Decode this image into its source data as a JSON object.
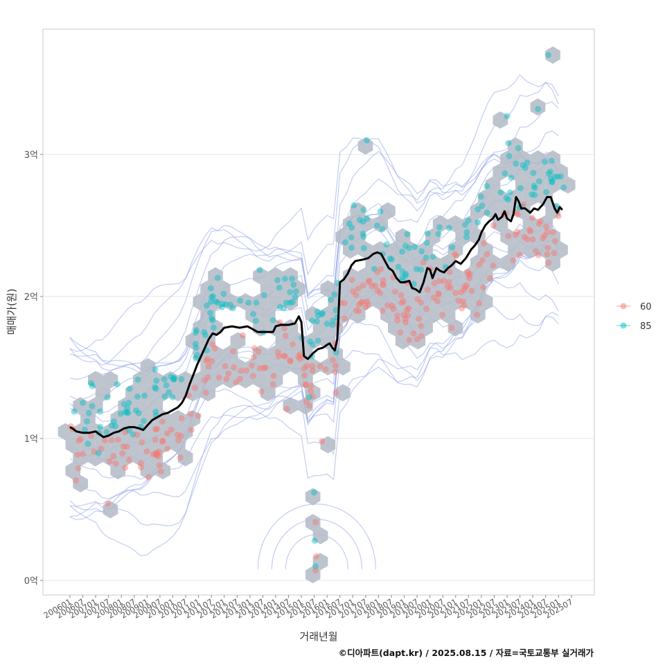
{
  "chart_data": {
    "type": "scatter",
    "xlabel": "거래년월",
    "ylabel": "매매가(원)",
    "caption": "©디아파트(dapt.kr) / 2025.08.15 / 자료=국토교통부 실거래가",
    "y_ticks": [
      {
        "value": 0,
        "label": "0억"
      },
      {
        "value": 1,
        "label": "1억"
      },
      {
        "value": 2,
        "label": "2억"
      },
      {
        "value": 3,
        "label": "3억"
      }
    ],
    "ylim": [
      -0.1,
      3.9
    ],
    "x_ticks": [
      "200601",
      "200607",
      "200701",
      "200707",
      "200801",
      "200807",
      "200901",
      "200907",
      "201001",
      "201007",
      "201101",
      "201107",
      "201201",
      "201207",
      "201301",
      "201307",
      "201401",
      "201407",
      "201501",
      "201507",
      "201601",
      "201607",
      "201701",
      "201707",
      "201801",
      "201807",
      "201901",
      "201907",
      "202001",
      "202007",
      "202101",
      "202107",
      "202201",
      "202207",
      "202301",
      "202307",
      "202401",
      "202407",
      "202501",
      "202507"
    ],
    "grid": true,
    "legend_position": "right",
    "legend": [
      {
        "label": "60",
        "color": "#F8766D"
      },
      {
        "label": "85",
        "color": "#00BFC4"
      }
    ],
    "line_color": "#000000",
    "hex_color": "#b3bac5",
    "contour_color": "#8fa3ea",
    "trend_line": [
      [
        2006.0,
        1.08
      ],
      [
        2006.1,
        1.07
      ],
      [
        2006.25,
        1.05
      ],
      [
        2006.5,
        1.04
      ],
      [
        2006.75,
        1.04
      ],
      [
        2007.0,
        1.05
      ],
      [
        2007.15,
        1.03
      ],
      [
        2007.3,
        1.01
      ],
      [
        2007.5,
        1.02
      ],
      [
        2007.7,
        1.04
      ],
      [
        2007.9,
        1.05
      ],
      [
        2008.1,
        1.07
      ],
      [
        2008.3,
        1.08
      ],
      [
        2008.5,
        1.08
      ],
      [
        2008.7,
        1.07
      ],
      [
        2008.85,
        1.06
      ],
      [
        2009.0,
        1.09
      ],
      [
        2009.2,
        1.13
      ],
      [
        2009.4,
        1.15
      ],
      [
        2009.6,
        1.17
      ],
      [
        2009.8,
        1.18
      ],
      [
        2010.0,
        1.2
      ],
      [
        2010.2,
        1.22
      ],
      [
        2010.35,
        1.25
      ],
      [
        2010.5,
        1.3
      ],
      [
        2010.65,
        1.38
      ],
      [
        2010.8,
        1.45
      ],
      [
        2010.95,
        1.52
      ],
      [
        2011.1,
        1.58
      ],
      [
        2011.25,
        1.64
      ],
      [
        2011.4,
        1.7
      ],
      [
        2011.55,
        1.74
      ],
      [
        2011.7,
        1.73
      ],
      [
        2011.85,
        1.75
      ],
      [
        2012.0,
        1.78
      ],
      [
        2012.3,
        1.79
      ],
      [
        2012.6,
        1.78
      ],
      [
        2012.9,
        1.79
      ],
      [
        2013.1,
        1.77
      ],
      [
        2013.3,
        1.75
      ],
      [
        2013.6,
        1.75
      ],
      [
        2013.9,
        1.75
      ],
      [
        2014.0,
        1.79
      ],
      [
        2014.2,
        1.8
      ],
      [
        2014.5,
        1.8
      ],
      [
        2014.75,
        1.81
      ],
      [
        2014.9,
        1.86
      ],
      [
        2015.0,
        1.82
      ],
      [
        2015.1,
        1.58
      ],
      [
        2015.25,
        1.56
      ],
      [
        2015.45,
        1.6
      ],
      [
        2015.65,
        1.63
      ],
      [
        2015.85,
        1.64
      ],
      [
        2016.0,
        1.66
      ],
      [
        2016.1,
        1.67
      ],
      [
        2016.2,
        1.64
      ],
      [
        2016.3,
        1.62
      ],
      [
        2016.4,
        1.7
      ],
      [
        2016.5,
        2.1
      ],
      [
        2016.65,
        2.12
      ],
      [
        2016.8,
        2.16
      ],
      [
        2016.95,
        2.22
      ],
      [
        2017.1,
        2.25
      ],
      [
        2017.4,
        2.26
      ],
      [
        2017.6,
        2.27
      ],
      [
        2017.8,
        2.3
      ],
      [
        2017.95,
        2.31
      ],
      [
        2018.1,
        2.3
      ],
      [
        2018.25,
        2.25
      ],
      [
        2018.4,
        2.2
      ],
      [
        2018.55,
        2.18
      ],
      [
        2018.7,
        2.13
      ],
      [
        2018.85,
        2.1
      ],
      [
        2019.0,
        2.1
      ],
      [
        2019.2,
        2.11
      ],
      [
        2019.3,
        2.06
      ],
      [
        2019.45,
        2.05
      ],
      [
        2019.6,
        2.03
      ],
      [
        2019.75,
        2.1
      ],
      [
        2019.9,
        2.2
      ],
      [
        2020.0,
        2.19
      ],
      [
        2020.1,
        2.13
      ],
      [
        2020.25,
        2.2
      ],
      [
        2020.4,
        2.18
      ],
      [
        2020.55,
        2.17
      ],
      [
        2020.7,
        2.2
      ],
      [
        2020.85,
        2.22
      ],
      [
        2021.0,
        2.25
      ],
      [
        2021.2,
        2.23
      ],
      [
        2021.4,
        2.27
      ],
      [
        2021.6,
        2.33
      ],
      [
        2021.75,
        2.36
      ],
      [
        2021.9,
        2.4
      ],
      [
        2022.0,
        2.45
      ],
      [
        2022.15,
        2.5
      ],
      [
        2022.3,
        2.53
      ],
      [
        2022.45,
        2.55
      ],
      [
        2022.55,
        2.58
      ],
      [
        2022.65,
        2.54
      ],
      [
        2022.8,
        2.56
      ],
      [
        2022.9,
        2.6
      ],
      [
        2023.0,
        2.55
      ],
      [
        2023.15,
        2.53
      ],
      [
        2023.25,
        2.58
      ],
      [
        2023.35,
        2.7
      ],
      [
        2023.45,
        2.67
      ],
      [
        2023.55,
        2.62
      ],
      [
        2023.7,
        2.62
      ],
      [
        2023.9,
        2.59
      ],
      [
        2024.05,
        2.62
      ],
      [
        2024.2,
        2.61
      ],
      [
        2024.4,
        2.65
      ],
      [
        2024.55,
        2.7
      ],
      [
        2024.7,
        2.7
      ],
      [
        2024.85,
        2.62
      ],
      [
        2024.95,
        2.59
      ],
      [
        2025.05,
        2.63
      ],
      [
        2025.15,
        2.61
      ]
    ]
  }
}
